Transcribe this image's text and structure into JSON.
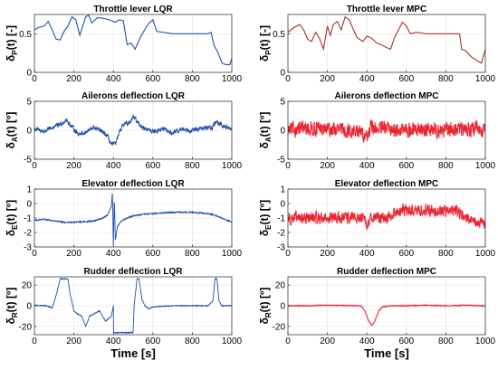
{
  "colors": {
    "lqr": "#1f4fad",
    "mpc": "#e8262b",
    "mpc_fill": "#f7b5e3"
  },
  "chart_data": [
    {
      "id": "throttle-lqr",
      "type": "line",
      "title": "Throttle lever LQR",
      "ylabel": "δP(t) [-]",
      "ylabel_main": "δ",
      "ylabel_sub": "P",
      "ylabel_rest": "(t) [-]",
      "xlabel": "",
      "xlim": [
        0,
        1000
      ],
      "ylim": [
        0,
        0.75
      ],
      "xticks": [
        0,
        200,
        400,
        600,
        800,
        1000
      ],
      "yticks": [
        0,
        0.5
      ],
      "grid": true,
      "series_color": "lqr",
      "noise": 0,
      "series": [
        {
          "x": [
            0,
            20,
            50,
            70,
            90,
            110,
            130,
            150,
            170,
            190,
            210,
            230,
            260,
            275,
            290,
            320,
            350,
            380,
            410,
            430,
            450,
            470,
            490,
            510,
            540,
            570,
            585,
            600,
            620,
            650,
            700,
            750,
            800,
            850,
            880,
            895,
            910,
            930,
            950,
            970,
            990,
            1000
          ],
          "y": [
            0.55,
            0.58,
            0.6,
            0.66,
            0.55,
            0.43,
            0.42,
            0.53,
            0.6,
            0.72,
            0.68,
            0.48,
            0.72,
            0.74,
            0.64,
            0.71,
            0.7,
            0.68,
            0.65,
            0.68,
            0.67,
            0.36,
            0.38,
            0.3,
            0.47,
            0.6,
            0.65,
            0.68,
            0.53,
            0.52,
            0.5,
            0.5,
            0.5,
            0.5,
            0.5,
            0.52,
            0.35,
            0.26,
            0.12,
            0.1,
            0.1,
            0.18
          ]
        }
      ]
    },
    {
      "id": "throttle-mpc",
      "type": "line",
      "title": "Throttle lever MPC",
      "ylabel": "δP(t) [-]",
      "ylabel_main": "δ",
      "ylabel_sub": "P",
      "ylabel_rest": "(t) [-]",
      "xlabel": "",
      "xlim": [
        0,
        1000
      ],
      "ylim": [
        0,
        0.75
      ],
      "xticks": [
        0,
        200,
        400,
        600,
        800,
        1000
      ],
      "yticks": [
        0,
        0.5
      ],
      "grid": true,
      "series_color": "mpc_dark",
      "noise": 0,
      "series": [
        {
          "x": [
            0,
            30,
            60,
            80,
            100,
            120,
            140,
            160,
            180,
            200,
            215,
            230,
            250,
            270,
            290,
            310,
            350,
            380,
            400,
            420,
            450,
            480,
            500,
            520,
            540,
            560,
            580,
            600,
            620,
            650,
            700,
            750,
            800,
            850,
            870,
            880,
            900,
            930,
            960,
            980,
            1000
          ],
          "y": [
            0.52,
            0.58,
            0.62,
            0.55,
            0.43,
            0.4,
            0.52,
            0.44,
            0.3,
            0.6,
            0.48,
            0.62,
            0.66,
            0.55,
            0.72,
            0.68,
            0.45,
            0.4,
            0.47,
            0.45,
            0.38,
            0.35,
            0.32,
            0.3,
            0.45,
            0.55,
            0.65,
            0.6,
            0.5,
            0.52,
            0.5,
            0.5,
            0.5,
            0.5,
            0.5,
            0.3,
            0.28,
            0.2,
            0.15,
            0.12,
            0.3
          ]
        }
      ]
    },
    {
      "id": "ailerons-lqr",
      "type": "line",
      "title": "Ailerons deflection LQR",
      "ylabel": "δA(t) [º]",
      "ylabel_main": "δ",
      "ylabel_sub": "A",
      "ylabel_rest": "(t) [º]",
      "xlabel": "",
      "xlim": [
        0,
        1000
      ],
      "ylim": [
        -5,
        5
      ],
      "xticks": [
        0,
        200,
        400,
        600,
        800,
        1000
      ],
      "yticks": [
        -5,
        0,
        5
      ],
      "grid": true,
      "series_color": "lqr",
      "noise": 0.55,
      "series": [
        {
          "x": [
            0,
            50,
            100,
            140,
            160,
            190,
            220,
            260,
            300,
            340,
            370,
            390,
            410,
            430,
            450,
            480,
            500,
            520,
            550,
            600,
            650,
            700,
            750,
            800,
            850,
            900,
            920,
            950,
            1000
          ],
          "y": [
            0.2,
            -0.2,
            0.6,
            1.2,
            1.8,
            0.6,
            -0.6,
            -0.4,
            0.5,
            -0.2,
            -1.0,
            -2.5,
            -2.3,
            -0.5,
            1.0,
            1.3,
            2.5,
            1.5,
            0.4,
            -0.2,
            0.2,
            -0.5,
            0.2,
            0.0,
            0.3,
            0.5,
            1.5,
            0.8,
            0.2
          ]
        }
      ]
    },
    {
      "id": "ailerons-mpc",
      "type": "line",
      "title": "Ailerons deflection MPC",
      "ylabel": "δA(t) [º]",
      "ylabel_main": "δ",
      "ylabel_sub": "A",
      "ylabel_rest": "(t) [º]",
      "xlabel": "",
      "xlim": [
        0,
        1000
      ],
      "ylim": [
        -5,
        5
      ],
      "xticks": [
        0,
        200,
        400,
        600,
        800,
        1000
      ],
      "yticks": [
        -5,
        0,
        5
      ],
      "grid": true,
      "series_color": "mpc",
      "noise": 1.7,
      "series": [
        {
          "x": [
            0,
            100,
            200,
            300,
            380,
            400,
            420,
            450,
            500,
            600,
            700,
            800,
            900,
            1000
          ],
          "y": [
            0.0,
            0.3,
            0.2,
            0.0,
            -0.5,
            -1.0,
            0.5,
            0.2,
            0.3,
            0.0,
            0.2,
            0.0,
            0.3,
            0.0
          ]
        }
      ]
    },
    {
      "id": "elevator-lqr",
      "type": "line",
      "title": "Elevator deflection LQR",
      "ylabel": "δE(t) [º]",
      "ylabel_main": "δ",
      "ylabel_sub": "E",
      "ylabel_rest": "(t) [º]",
      "xlabel": "",
      "xlim": [
        0,
        1000
      ],
      "ylim": [
        -3,
        1
      ],
      "xticks": [
        0,
        200,
        400,
        600,
        800,
        1000
      ],
      "yticks": [
        -3,
        -2,
        -1,
        0,
        1
      ],
      "grid": true,
      "series_color": "lqr",
      "noise": 0.06,
      "series": [
        {
          "x": [
            0,
            50,
            100,
            150,
            200,
            250,
            300,
            340,
            370,
            390,
            395,
            400,
            405,
            410,
            420,
            440,
            470,
            500,
            550,
            600,
            650,
            700,
            750,
            800,
            850,
            900,
            940,
            970,
            1000
          ],
          "y": [
            -1.15,
            -1.1,
            -1.2,
            -1.3,
            -1.3,
            -1.25,
            -1.2,
            -1.05,
            -0.8,
            -0.2,
            0.8,
            -2.9,
            0.4,
            -2.5,
            -1.6,
            -1.2,
            -1.0,
            -0.85,
            -0.75,
            -0.7,
            -0.65,
            -0.6,
            -0.6,
            -0.6,
            -0.65,
            -0.75,
            -0.95,
            -1.15,
            -1.25
          ]
        }
      ]
    },
    {
      "id": "elevator-mpc",
      "type": "line",
      "title": "Elevator deflection MPC",
      "ylabel": "δE(t) [º]",
      "ylabel_main": "δ",
      "ylabel_sub": "E",
      "ylabel_rest": "(t) [º]",
      "xlabel": "",
      "xlim": [
        0,
        1000
      ],
      "ylim": [
        -3,
        1
      ],
      "xticks": [
        0,
        200,
        400,
        600,
        800,
        1000
      ],
      "yticks": [
        -3,
        -2,
        -1,
        0,
        1
      ],
      "grid": true,
      "series_color": "mpc",
      "noise": 0.55,
      "series": [
        {
          "x": [
            0,
            100,
            200,
            300,
            380,
            400,
            420,
            500,
            550,
            600,
            700,
            800,
            850,
            870,
            900,
            950,
            1000
          ],
          "y": [
            -1.0,
            -1.0,
            -1.0,
            -1.0,
            -1.0,
            -1.6,
            -0.9,
            -1.0,
            -0.55,
            -0.5,
            -0.45,
            -0.5,
            -0.5,
            -0.6,
            -1.0,
            -1.3,
            -1.4
          ]
        }
      ]
    },
    {
      "id": "rudder-lqr",
      "type": "line",
      "title": "Rudder deflection LQR",
      "ylabel": "δR(t) [º]",
      "ylabel_main": "δ",
      "ylabel_sub": "R",
      "ylabel_rest": "(t) [º]",
      "xlabel": "Time [s]",
      "xlim": [
        0,
        1000
      ],
      "ylim": [
        -28,
        28
      ],
      "xticks": [
        0,
        200,
        400,
        600,
        800,
        1000
      ],
      "yticks": [
        -20,
        0,
        20
      ],
      "grid": true,
      "series_color": "lqr",
      "noise": 0.6,
      "series": [
        {
          "x": [
            0,
            60,
            90,
            110,
            130,
            140,
            170,
            180,
            200,
            220,
            240,
            260,
            280,
            300,
            330,
            360,
            390,
            400,
            401,
            500,
            505,
            520,
            530,
            545,
            560,
            580,
            600,
            700,
            800,
            880,
            905,
            915,
            925,
            935,
            950,
            1000
          ],
          "y": [
            0.5,
            0.0,
            -2.0,
            10,
            26,
            26,
            26,
            12,
            -5,
            -8,
            -10,
            -20,
            -10,
            -8,
            -5,
            -15,
            -10,
            0,
            -26,
            -26,
            0,
            26,
            26,
            6,
            0,
            -3,
            -1,
            0,
            0,
            0,
            5,
            26,
            26,
            5,
            0,
            0
          ]
        }
      ]
    },
    {
      "id": "rudder-mpc",
      "type": "line",
      "title": "Rudder deflection MPC",
      "ylabel": "δR(t) [º]",
      "ylabel_main": "δ",
      "ylabel_sub": "R",
      "ylabel_rest": "(t) [º]",
      "xlabel": "Time [s]",
      "xlim": [
        0,
        1000
      ],
      "ylim": [
        -28,
        28
      ],
      "xticks": [
        0,
        200,
        400,
        600,
        800,
        1000
      ],
      "yticks": [
        -20,
        0,
        20
      ],
      "grid": true,
      "series_color": "mpc",
      "noise": 0.5,
      "series": [
        {
          "x": [
            0,
            100,
            200,
            300,
            370,
            390,
            410,
            425,
            440,
            460,
            480,
            520,
            600,
            700,
            800,
            900,
            1000
          ],
          "y": [
            0.0,
            0.0,
            0.5,
            0.3,
            0.0,
            -5,
            -15,
            -19,
            -15,
            -5,
            -1,
            0,
            0,
            0.5,
            0.0,
            0.5,
            0.0
          ]
        }
      ]
    }
  ]
}
